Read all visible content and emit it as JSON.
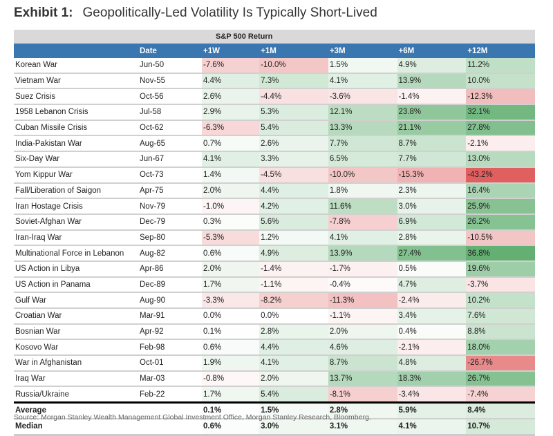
{
  "title": {
    "label": "Exhibit 1:",
    "text": "Geopolitically-Led Volatility Is Typically Short-Lived"
  },
  "source": "Source: Morgan Stanley Wealth Management Global Investment Office, Morgan Stanley Research, Bloomberg.",
  "colors": {
    "header": "#3a76b0",
    "super_header": "#d9d9d9",
    "positive": "#5aab6a",
    "negative": "#e06060"
  },
  "chart_data": {
    "type": "table",
    "super_header": "S&P 500 Return",
    "columns": [
      "",
      "Date",
      "+1W",
      "+1M",
      "+3M",
      "+6M",
      "+12M"
    ],
    "rows": [
      [
        "Korean War",
        "Jun-50",
        "-7.6%",
        "-10.0%",
        "1.5%",
        "4.9%",
        "11.2%"
      ],
      [
        "Vietnam War",
        "Nov-55",
        "4.4%",
        "7.3%",
        "4.1%",
        "13.9%",
        "10.0%"
      ],
      [
        "Suez Crisis",
        "Oct-56",
        "2.6%",
        "-4.4%",
        "-3.6%",
        "-1.4%",
        "-12.3%"
      ],
      [
        "1958 Lebanon Crisis",
        "Jul-58",
        "2.9%",
        "5.3%",
        "12.1%",
        "23.8%",
        "32.1%"
      ],
      [
        "Cuban Missile Crisis",
        "Oct-62",
        "-6.3%",
        "5.4%",
        "13.3%",
        "21.1%",
        "27.8%"
      ],
      [
        "India-Pakistan War",
        "Aug-65",
        "0.7%",
        "2.6%",
        "7.7%",
        "8.7%",
        "-2.1%"
      ],
      [
        "Six-Day War",
        "Jun-67",
        "4.1%",
        "3.3%",
        "6.5%",
        "7.7%",
        "13.0%"
      ],
      [
        "Yom Kippur War",
        "Oct-73",
        "1.4%",
        "-4.5%",
        "-10.0%",
        "-15.3%",
        "-43.2%"
      ],
      [
        "Fall/Liberation of Saigon",
        "Apr-75",
        "2.0%",
        "4.4%",
        "1.8%",
        "2.3%",
        "16.4%"
      ],
      [
        "Iran Hostage Crisis",
        "Nov-79",
        "-1.0%",
        "4.2%",
        "11.6%",
        "3.0%",
        "25.9%"
      ],
      [
        "Soviet-Afghan War",
        "Dec-79",
        "0.3%",
        "5.6%",
        "-7.8%",
        "6.9%",
        "26.2%"
      ],
      [
        "Iran-Iraq War",
        "Sep-80",
        "-5.3%",
        "1.2%",
        "4.1%",
        "2.8%",
        "-10.5%"
      ],
      [
        "Multinational Force in Lebanon",
        "Aug-82",
        "0.6%",
        "4.9%",
        "13.9%",
        "27.4%",
        "36.8%"
      ],
      [
        "US Action in Libya",
        "Apr-86",
        "2.0%",
        "-1.4%",
        "-1.7%",
        "0.5%",
        "19.6%"
      ],
      [
        "US Action in Panama",
        "Dec-89",
        "1.7%",
        "-1.1%",
        "-0.4%",
        "4.7%",
        "-3.7%"
      ],
      [
        "Gulf War",
        "Aug-90",
        "-3.3%",
        "-8.2%",
        "-11.3%",
        "-2.4%",
        "10.2%"
      ],
      [
        "Croatian War",
        "Mar-91",
        "0.0%",
        "0.0%",
        "-1.1%",
        "3.4%",
        "7.6%"
      ],
      [
        "Bosnian War",
        "Apr-92",
        "0.1%",
        "2.8%",
        "2.0%",
        "0.4%",
        "8.8%"
      ],
      [
        "Kosovo War",
        "Feb-98",
        "0.6%",
        "4.4%",
        "4.6%",
        "-2.1%",
        "18.0%"
      ],
      [
        "War in Afghanistan",
        "Oct-01",
        "1.9%",
        "4.1%",
        "8.7%",
        "4.8%",
        "-26.7%"
      ],
      [
        "Iraq War",
        "Mar-03",
        "-0.8%",
        "2.0%",
        "13.7%",
        "18.3%",
        "26.7%"
      ],
      [
        "Russia/Ukraine",
        "Feb-22",
        "1.7%",
        "5.4%",
        "-8.1%",
        "-3.4%",
        "-7.4%"
      ]
    ],
    "summary": [
      [
        "Average",
        "",
        "0.1%",
        "1.5%",
        "2.8%",
        "5.9%",
        "8.4%"
      ],
      [
        "Median",
        "",
        "0.6%",
        "3.0%",
        "3.1%",
        "4.1%",
        "10.7%"
      ]
    ]
  }
}
